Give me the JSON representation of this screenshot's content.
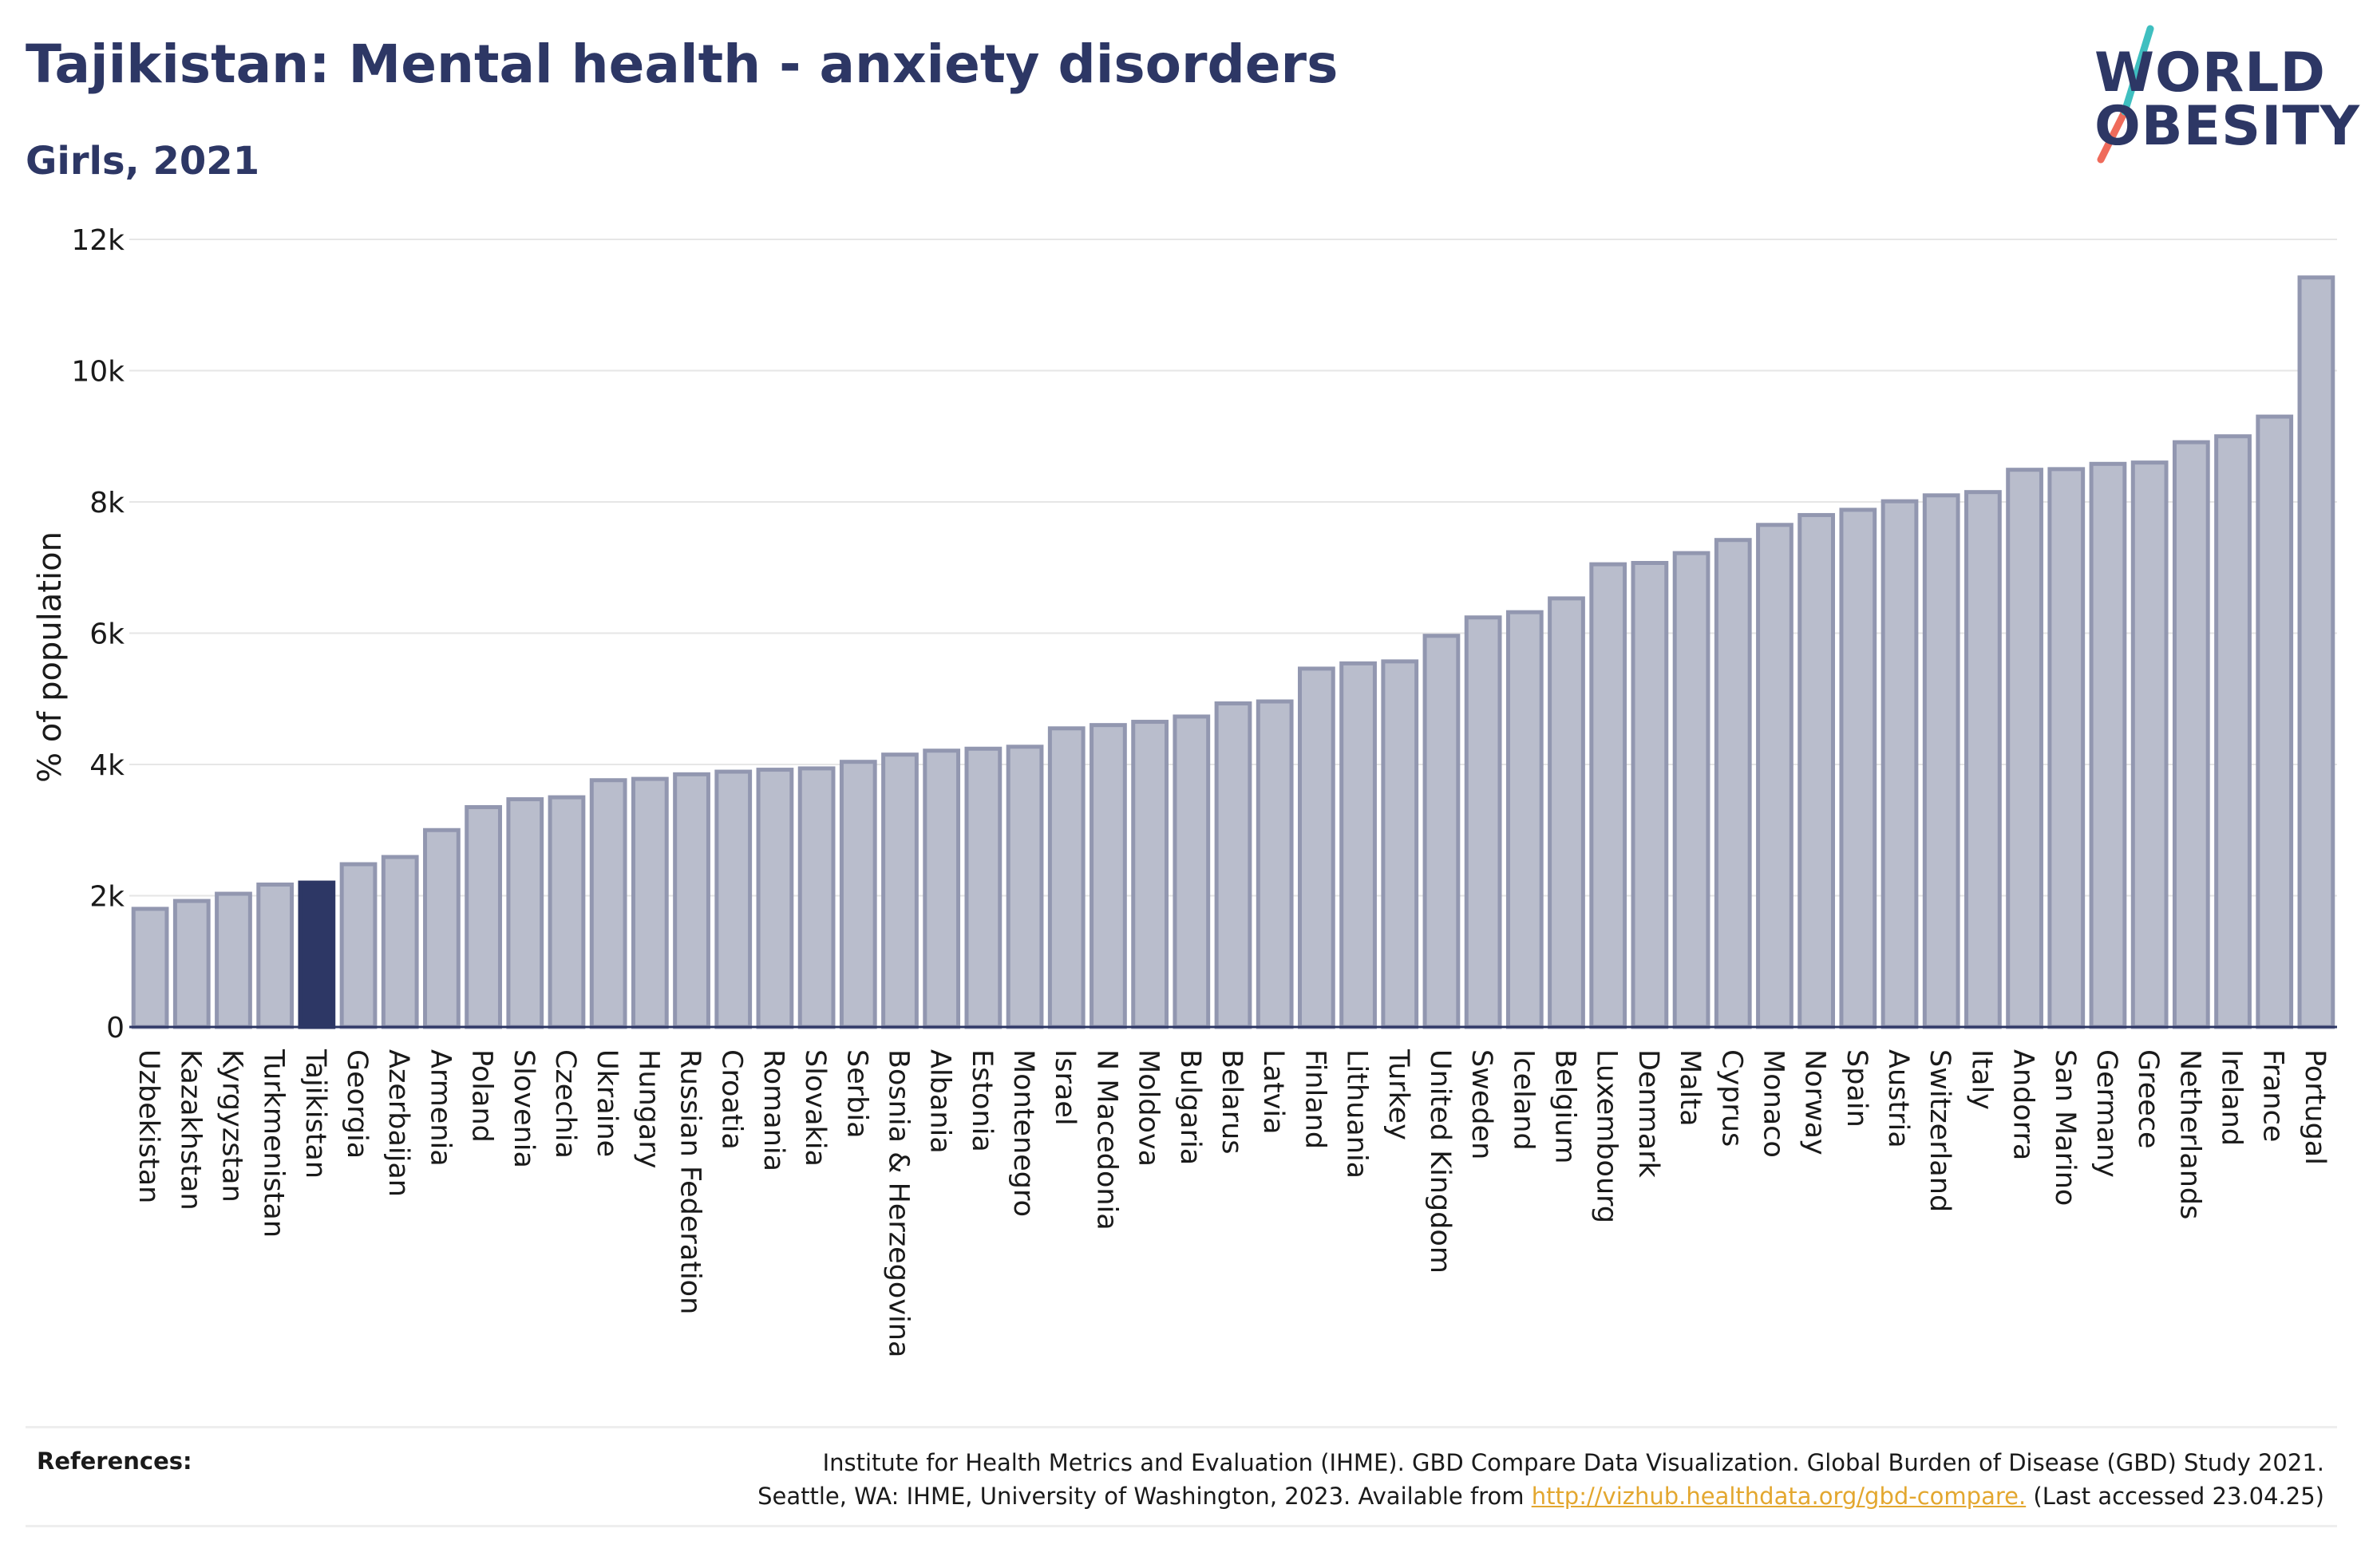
{
  "header": {
    "title": "Tajikistan: Mental health - anxiety disorders",
    "subtitle": "Girls, 2021"
  },
  "logo": {
    "line1": "WORLD",
    "line2": "OBESITY",
    "colors": {
      "text": "#2d3765",
      "slash_top": "#3fbfc0",
      "slash_bottom": "#ef6b5b"
    }
  },
  "chart_data": {
    "type": "bar",
    "ylabel": "% of population",
    "ylim": [
      0,
      12000
    ],
    "yticks": [
      0,
      2000,
      4000,
      6000,
      8000,
      10000,
      12000
    ],
    "ytick_labels": [
      "0",
      "2k",
      "4k",
      "6k",
      "8k",
      "10k",
      "12k"
    ],
    "grid": true,
    "highlight": "Tajikistan",
    "colors": {
      "bar": "#b9bdcc",
      "bar_edge": "#9297b0",
      "highlight": "#2d3765",
      "grid": "#e6e6e6"
    },
    "categories": [
      "Uzbekistan",
      "Kazakhstan",
      "Kyrgyzstan",
      "Turkmenistan",
      "Tajikistan",
      "Georgia",
      "Azerbaijan",
      "Armenia",
      "Poland",
      "Slovenia",
      "Czechia",
      "Ukraine",
      "Hungary",
      "Russian Federation",
      "Croatia",
      "Romania",
      "Slovakia",
      "Serbia",
      "Bosnia & Herzegovina",
      "Albania",
      "Estonia",
      "Montenegro",
      "Israel",
      "N Macedonia",
      "Moldova",
      "Bulgaria",
      "Belarus",
      "Latvia",
      "Finland",
      "Lithuania",
      "Turkey",
      "United Kingdom",
      "Sweden",
      "Iceland",
      "Belgium",
      "Luxembourg",
      "Denmark",
      "Malta",
      "Cyprus",
      "Monaco",
      "Norway",
      "Spain",
      "Austria",
      "Switzerland",
      "Italy",
      "Andorra",
      "San Marino",
      "Germany",
      "Greece",
      "Netherlands",
      "Ireland",
      "France",
      "Portugal"
    ],
    "values": [
      1800,
      1920,
      2030,
      2170,
      2200,
      2480,
      2590,
      3000,
      3350,
      3470,
      3500,
      3760,
      3780,
      3850,
      3890,
      3920,
      3940,
      4040,
      4150,
      4210,
      4240,
      4270,
      4550,
      4600,
      4650,
      4730,
      4930,
      4960,
      5460,
      5540,
      5570,
      5960,
      6240,
      6320,
      6530,
      7050,
      7070,
      7220,
      7420,
      7650,
      7800,
      7880,
      8010,
      8100,
      8150,
      8490,
      8500,
      8580,
      8600,
      8910,
      9000,
      9300,
      11420
    ]
  },
  "references": {
    "label": "References:",
    "line1": "Institute for Health Metrics and Evaluation (IHME). GBD Compare Data Visualization. Global Burden of Disease (GBD) Study 2021.",
    "line2_pre": "Seattle, WA: IHME, University of Washington, 2023. Available from ",
    "link": "http://vizhub.healthdata.org/gbd-compare.",
    "line2_post": " (Last accessed 23.04.25)"
  }
}
